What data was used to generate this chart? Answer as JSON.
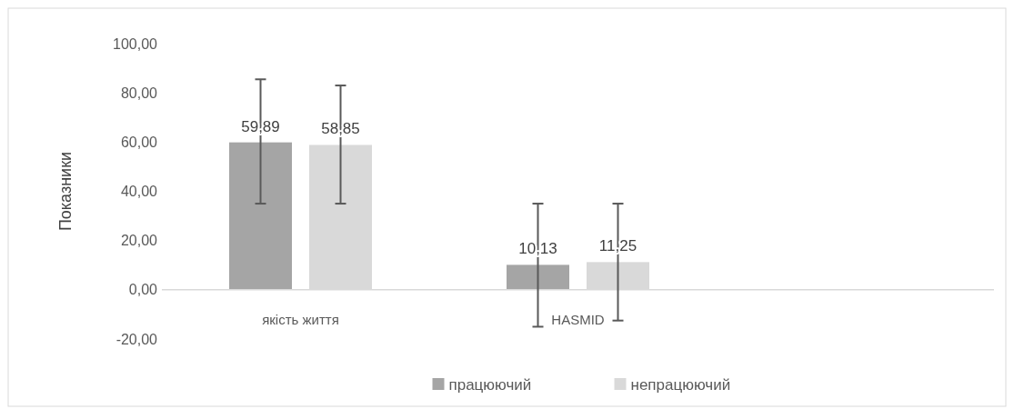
{
  "chart_data": {
    "type": "bar",
    "ylabel": "Показники",
    "categories": [
      "якість життя",
      "HASMID",
      null
    ],
    "series": [
      {
        "name": "працюючий",
        "color": "#a5a5a5",
        "values": [
          59.89,
          10.13,
          null
        ],
        "value_labels": [
          "59,89",
          "10,13",
          null
        ],
        "errors": [
          [
            35,
            85.5
          ],
          [
            -15,
            35
          ],
          null
        ]
      },
      {
        "name": "непрацюючий",
        "color": "#d9d9d9",
        "values": [
          58.85,
          11.25,
          null
        ],
        "value_labels": [
          "58,85",
          "11,25",
          null
        ],
        "errors": [
          [
            35,
            83
          ],
          [
            -12.5,
            35
          ],
          null
        ]
      }
    ],
    "ylim": [
      -20,
      100
    ],
    "yticks": [
      {
        "value": -20,
        "label": "-20,00"
      },
      {
        "value": 0,
        "label": "0,00"
      },
      {
        "value": 20,
        "label": "20,00"
      },
      {
        "value": 40,
        "label": "40,00"
      },
      {
        "value": 60,
        "label": "60,00"
      },
      {
        "value": 80,
        "label": "80,00"
      },
      {
        "value": 100,
        "label": "100,00"
      }
    ],
    "grid": false,
    "legend": "bottom"
  }
}
